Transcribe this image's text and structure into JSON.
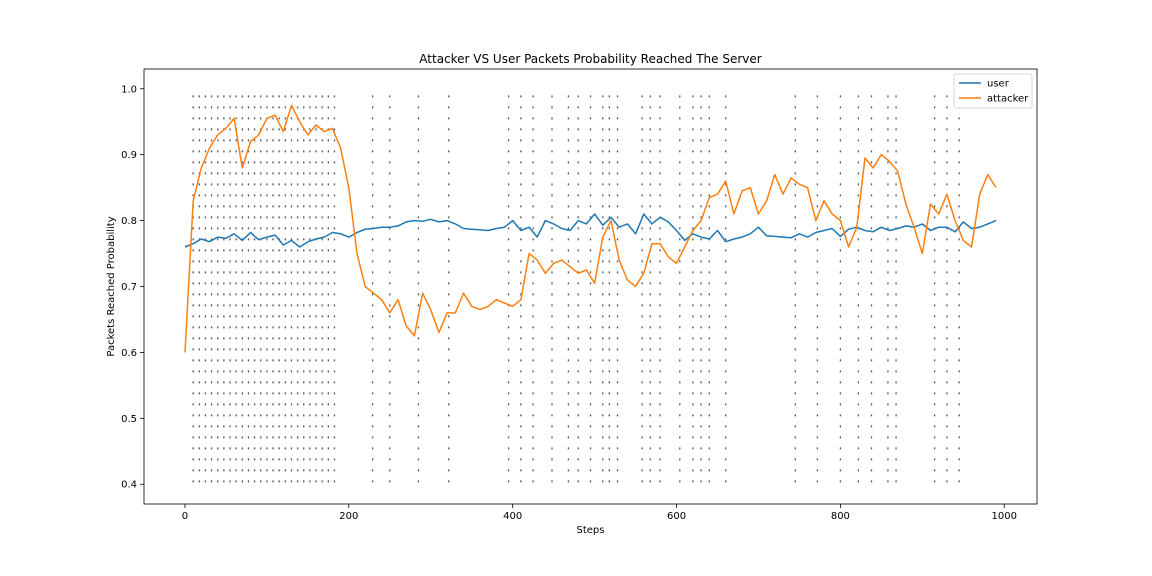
{
  "chart_data": {
    "type": "line",
    "title": "Attacker VS User Packets Probability Reached The Server",
    "xlabel": "Steps",
    "ylabel": "Packets Reached Probability",
    "xlim": [
      -50,
      1040
    ],
    "ylim": [
      0.37,
      1.03
    ],
    "xticks": [
      0,
      200,
      400,
      600,
      800,
      1000
    ],
    "yticks": [
      0.4,
      0.5,
      0.6,
      0.7,
      0.8,
      0.9,
      1.0
    ],
    "xtick_labels": [
      "0",
      "200",
      "400",
      "600",
      "800",
      "1000"
    ],
    "ytick_labels": [
      "0.4",
      "0.5",
      "0.6",
      "0.7",
      "0.8",
      "0.9",
      "1.0"
    ],
    "legend": {
      "position": "top-right"
    },
    "series": [
      {
        "name": "user",
        "color": "#1f77b4",
        "x": [
          0,
          10,
          20,
          30,
          40,
          50,
          60,
          70,
          80,
          90,
          100,
          110,
          120,
          130,
          140,
          150,
          160,
          170,
          180,
          190,
          200,
          210,
          220,
          230,
          240,
          250,
          260,
          270,
          280,
          290,
          300,
          310,
          320,
          330,
          340,
          350,
          360,
          370,
          380,
          390,
          400,
          410,
          420,
          430,
          440,
          450,
          460,
          470,
          480,
          490,
          500,
          510,
          520,
          530,
          540,
          550,
          560,
          570,
          580,
          590,
          600,
          610,
          620,
          630,
          640,
          650,
          660,
          670,
          680,
          690,
          700,
          710,
          720,
          730,
          740,
          750,
          760,
          770,
          780,
          790,
          800,
          810,
          820,
          830,
          840,
          850,
          860,
          870,
          880,
          890,
          900,
          910,
          920,
          930,
          940,
          950,
          960,
          970,
          980,
          990
        ],
        "y": [
          0.76,
          0.765,
          0.772,
          0.768,
          0.775,
          0.773,
          0.78,
          0.77,
          0.782,
          0.771,
          0.775,
          0.778,
          0.763,
          0.77,
          0.76,
          0.768,
          0.772,
          0.775,
          0.782,
          0.78,
          0.775,
          0.782,
          0.787,
          0.788,
          0.79,
          0.79,
          0.792,
          0.798,
          0.8,
          0.799,
          0.802,
          0.798,
          0.8,
          0.795,
          0.788,
          0.787,
          0.786,
          0.785,
          0.788,
          0.79,
          0.8,
          0.785,
          0.79,
          0.775,
          0.8,
          0.795,
          0.788,
          0.785,
          0.8,
          0.795,
          0.81,
          0.793,
          0.805,
          0.79,
          0.795,
          0.78,
          0.81,
          0.795,
          0.805,
          0.798,
          0.785,
          0.77,
          0.78,
          0.775,
          0.772,
          0.785,
          0.768,
          0.772,
          0.775,
          0.78,
          0.79,
          0.777,
          0.776,
          0.775,
          0.774,
          0.78,
          0.775,
          0.782,
          0.785,
          0.788,
          0.776,
          0.787,
          0.79,
          0.785,
          0.783,
          0.79,
          0.785,
          0.788,
          0.792,
          0.79,
          0.795,
          0.785,
          0.79,
          0.79,
          0.783,
          0.798,
          0.788,
          0.79,
          0.795,
          0.8
        ]
      },
      {
        "name": "attacker",
        "color": "#ff7f0e",
        "x": [
          0,
          10,
          20,
          30,
          40,
          50,
          60,
          70,
          80,
          90,
          100,
          110,
          120,
          130,
          140,
          150,
          160,
          170,
          180,
          190,
          200,
          210,
          220,
          230,
          240,
          250,
          260,
          270,
          280,
          290,
          300,
          310,
          320,
          330,
          340,
          350,
          360,
          370,
          380,
          390,
          400,
          410,
          420,
          430,
          440,
          450,
          460,
          470,
          480,
          490,
          500,
          510,
          520,
          530,
          540,
          550,
          560,
          570,
          580,
          590,
          600,
          610,
          620,
          630,
          640,
          650,
          660,
          670,
          680,
          690,
          700,
          710,
          720,
          730,
          740,
          750,
          760,
          770,
          780,
          790,
          800,
          810,
          820,
          830,
          840,
          850,
          860,
          870,
          880,
          890,
          900,
          910,
          920,
          930,
          940,
          950,
          960,
          970,
          980,
          990
        ],
        "y": [
          0.6,
          0.83,
          0.88,
          0.91,
          0.93,
          0.94,
          0.955,
          0.88,
          0.92,
          0.93,
          0.955,
          0.96,
          0.935,
          0.975,
          0.95,
          0.93,
          0.945,
          0.935,
          0.94,
          0.91,
          0.85,
          0.75,
          0.7,
          0.69,
          0.68,
          0.66,
          0.68,
          0.64,
          0.625,
          0.69,
          0.665,
          0.63,
          0.66,
          0.66,
          0.69,
          0.67,
          0.665,
          0.67,
          0.68,
          0.675,
          0.67,
          0.68,
          0.75,
          0.74,
          0.72,
          0.735,
          0.74,
          0.73,
          0.72,
          0.725,
          0.705,
          0.775,
          0.8,
          0.74,
          0.71,
          0.7,
          0.72,
          0.765,
          0.765,
          0.745,
          0.735,
          0.76,
          0.785,
          0.8,
          0.835,
          0.84,
          0.86,
          0.81,
          0.845,
          0.85,
          0.81,
          0.83,
          0.87,
          0.84,
          0.865,
          0.855,
          0.85,
          0.8,
          0.83,
          0.81,
          0.8,
          0.76,
          0.79,
          0.895,
          0.88,
          0.9,
          0.89,
          0.875,
          0.825,
          0.79,
          0.75,
          0.825,
          0.81,
          0.84,
          0.8,
          0.77,
          0.76,
          0.84,
          0.87,
          0.85
        ]
      }
    ]
  }
}
